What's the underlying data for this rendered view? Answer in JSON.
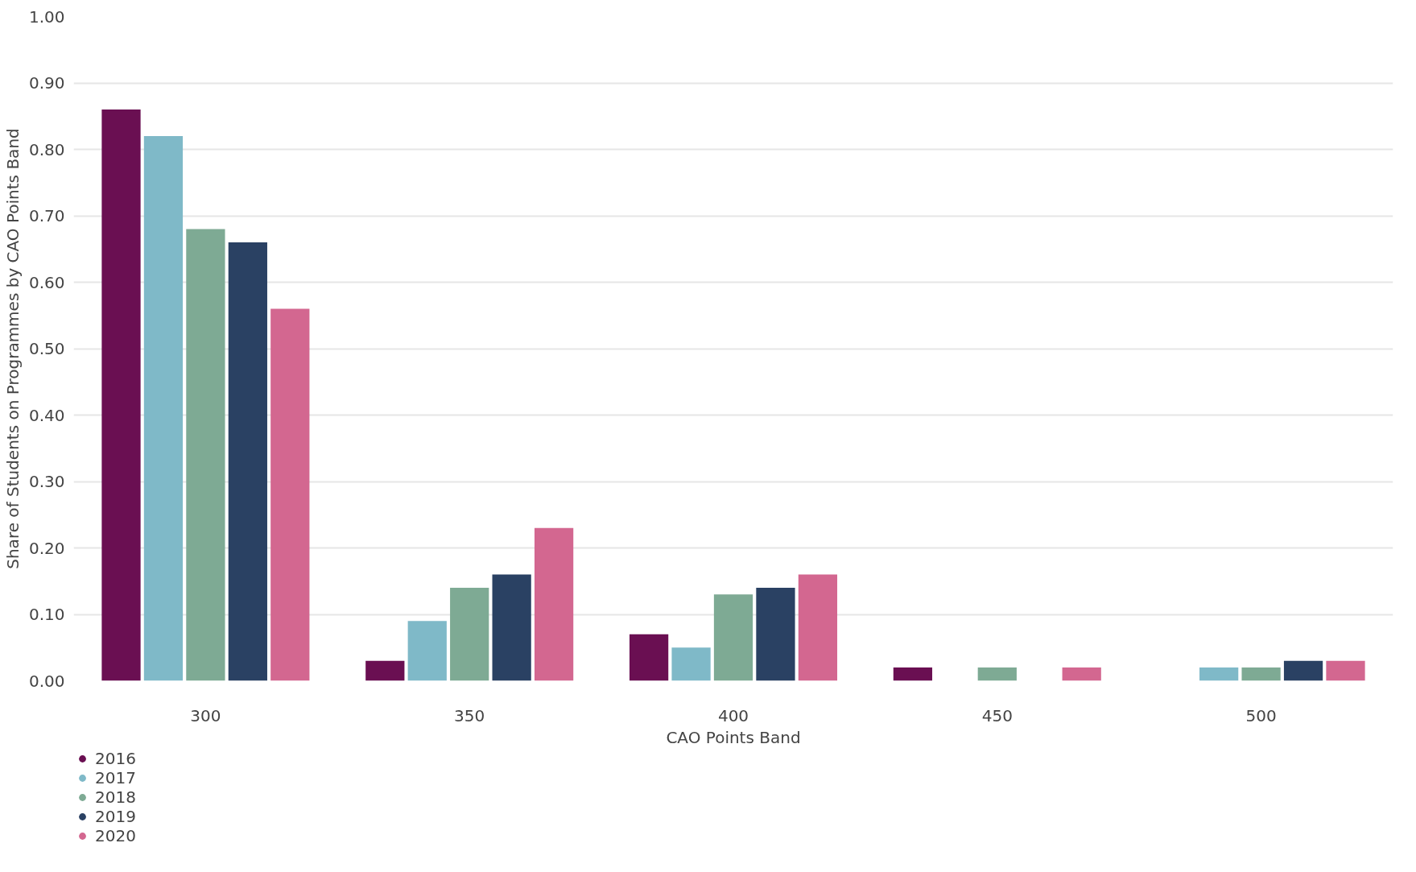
{
  "chart_data": {
    "type": "bar",
    "xlabel": "CAO Points Band",
    "ylabel": "Share of Students on Programmes by CAO Points Band",
    "categories": [
      "300",
      "350",
      "400",
      "450",
      "500"
    ],
    "series": [
      {
        "name": "2016",
        "color": "#6a0f52",
        "values": [
          0.86,
          0.03,
          0.07,
          0.02,
          null
        ]
      },
      {
        "name": "2017",
        "color": "#7fb9c8",
        "values": [
          0.82,
          0.09,
          0.05,
          null,
          0.02
        ]
      },
      {
        "name": "2018",
        "color": "#7eaa94",
        "values": [
          0.68,
          0.14,
          0.13,
          0.02,
          0.02
        ]
      },
      {
        "name": "2019",
        "color": "#2a4163",
        "values": [
          0.66,
          0.16,
          0.14,
          null,
          0.03
        ]
      },
      {
        "name": "2020",
        "color": "#d36790",
        "values": [
          0.56,
          0.23,
          0.16,
          0.02,
          0.03
        ]
      }
    ],
    "ylim": [
      0,
      1.0
    ],
    "yticks": [
      {
        "value": 0,
        "label": "0.00"
      },
      {
        "value": 0.1,
        "label": "0.10"
      },
      {
        "value": 0.2,
        "label": "0.20"
      },
      {
        "value": 0.3,
        "label": "0.30"
      },
      {
        "value": 0.4,
        "label": "0.40"
      },
      {
        "value": 0.5,
        "label": "0.50"
      },
      {
        "value": 0.6,
        "label": "0.60"
      },
      {
        "value": 0.7,
        "label": "0.70"
      },
      {
        "value": 0.8,
        "label": "0.80"
      },
      {
        "value": 0.9,
        "label": "0.90"
      },
      {
        "value": 1.0,
        "label": "1.00"
      }
    ],
    "grid": "y",
    "legend": "bottom left"
  }
}
